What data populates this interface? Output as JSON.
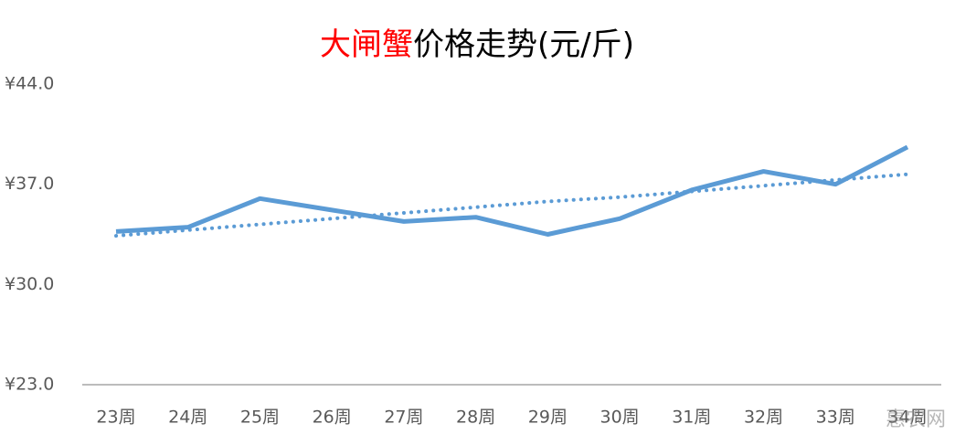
{
  "chart_data": {
    "type": "line",
    "title_parts": [
      {
        "text": "大闸蟹",
        "color": "#ff0000"
      },
      {
        "text": "价格走势(元/斤)",
        "color": "#000000"
      }
    ],
    "categories": [
      "23周",
      "24周",
      "25周",
      "26周",
      "27周",
      "28周",
      "29周",
      "30周",
      "31周",
      "32周",
      "33周",
      "34周"
    ],
    "series": [
      {
        "color": "#5b9bd5",
        "values": [
          33.7,
          34.0,
          36.0,
          35.2,
          34.4,
          34.7,
          33.5,
          34.6,
          36.6,
          37.9,
          37.0,
          39.6
        ]
      }
    ],
    "trendline": {
      "color": "#5b9bd5",
      "style": "dotted",
      "values": [
        33.4,
        33.8,
        34.2,
        34.6,
        35.0,
        35.4,
        35.8,
        36.1,
        36.5,
        36.9,
        37.3,
        37.7
      ]
    },
    "ylim": [
      23,
      44
    ],
    "yticks": [
      {
        "value": 23,
        "label": "¥23.0"
      },
      {
        "value": 30,
        "label": "¥30.0"
      },
      {
        "value": 37,
        "label": "¥37.0"
      },
      {
        "value": 44,
        "label": "¥44.0"
      }
    ],
    "grid": false,
    "watermark": "惠农网"
  }
}
